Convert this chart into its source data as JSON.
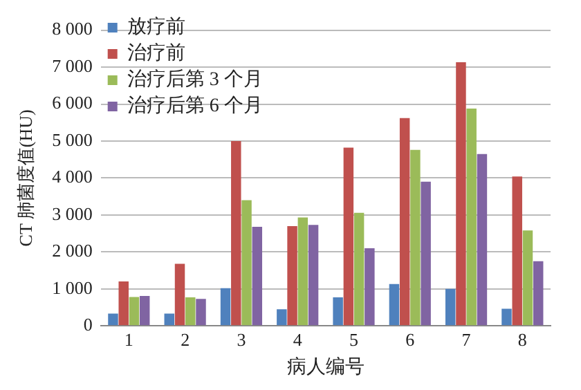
{
  "chart_data": {
    "type": "bar",
    "xlabel": "病人编号",
    "ylabel": "CT 肺菌度值(HU)",
    "categories": [
      "1",
      "2",
      "3",
      "4",
      "5",
      "6",
      "7",
      "8"
    ],
    "series": [
      {
        "name": "放疗前",
        "color": "#4f81bd",
        "values": [
          330,
          330,
          1020,
          450,
          770,
          1130,
          1000,
          460
        ]
      },
      {
        "name": "治疗前",
        "color": "#c0504d",
        "values": [
          1200,
          1680,
          5000,
          2700,
          4820,
          5620,
          7130,
          4040
        ]
      },
      {
        "name": "治疗后第 3 个月",
        "color": "#9bbb59",
        "values": [
          780,
          770,
          3400,
          2930,
          3060,
          4760,
          5880,
          2580
        ]
      },
      {
        "name": "治疗后第 6 个月",
        "color": "#8064a2",
        "values": [
          810,
          730,
          2680,
          2730,
          2100,
          3900,
          4650,
          1750
        ]
      }
    ],
    "ylim": [
      0,
      8000
    ],
    "yticks": [
      0,
      {
        "value": 1000,
        "label": "1 000"
      },
      {
        "value": 2000,
        "label": "2 000"
      },
      {
        "value": 3000,
        "label": "3 000"
      },
      {
        "value": 4000,
        "label": "4 000"
      },
      {
        "value": 5000,
        "label": "5 000"
      },
      {
        "value": 6000,
        "label": "6 000"
      },
      {
        "value": 7000,
        "label": "7 000"
      },
      {
        "value": 8000,
        "label": "8 000"
      }
    ],
    "grid": "y",
    "legend": "top left"
  }
}
